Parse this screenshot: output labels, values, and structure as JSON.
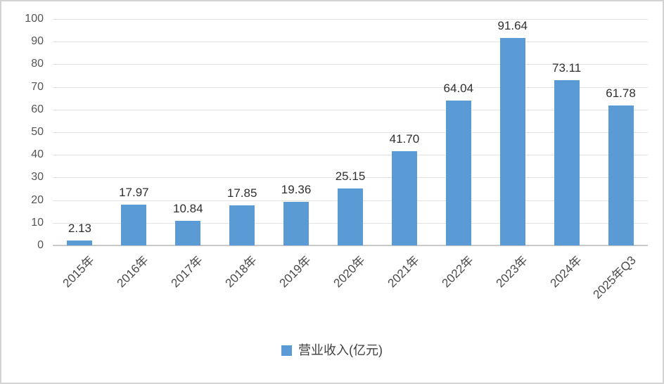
{
  "chart_data": {
    "type": "bar",
    "categories": [
      "2015年",
      "2016年",
      "2017年",
      "2018年",
      "2019年",
      "2020年",
      "2021年",
      "2022年",
      "2023年",
      "2024年",
      "2025年Q3"
    ],
    "values": [
      2.13,
      17.97,
      10.84,
      17.85,
      19.36,
      25.15,
      41.7,
      64.04,
      91.64,
      73.11,
      61.78
    ],
    "data_labels": [
      "2.13",
      "17.97",
      "10.84",
      "17.85",
      "19.36",
      "25.15",
      "41.70",
      "64.04",
      "91.64",
      "73.11",
      "61.78"
    ],
    "series_name": "营业收入(亿元)",
    "title": "",
    "xlabel": "",
    "ylabel": "",
    "ylim": [
      0,
      100
    ],
    "yticks": [
      0,
      10,
      20,
      30,
      40,
      50,
      60,
      70,
      80,
      90,
      100
    ],
    "grid": true,
    "legend_position": "bottom",
    "bar_color": "#5b9bd5"
  },
  "legend": {
    "label": "营业收入(亿元)"
  },
  "colors": {
    "bar": "#5b9bd5",
    "gridline": "#e2e2e2",
    "axis_line": "#c9c9c9",
    "tick_text": "#555555",
    "data_label_text": "#2f2f2f",
    "frame_border": "#d4d4d4"
  }
}
